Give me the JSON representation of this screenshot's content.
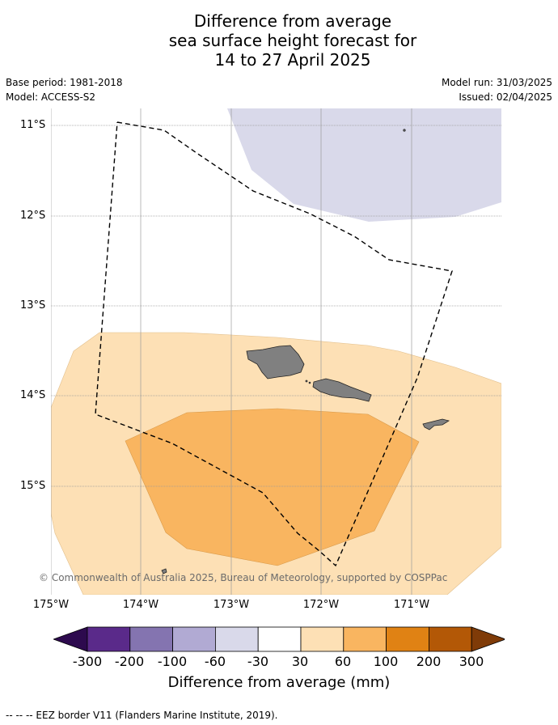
{
  "header": {
    "title_lines": [
      "Difference from average",
      "sea surface height forecast for",
      "14 to 27 April 2025"
    ],
    "base_period": "Base period: 1981-2018",
    "model": "Model: ACCESS-S2",
    "model_run": "Model run: 31/03/2025",
    "issued": "Issued: 02/04/2025"
  },
  "map": {
    "lat_labels": [
      "11°S",
      "12°S",
      "13°S",
      "14°S",
      "15°S"
    ],
    "lon_labels": [
      "175°W",
      "174°W",
      "173°W",
      "172°W",
      "171°W"
    ],
    "copyright": "© Commonwealth of Australia 2025, Bureau of Meteorology, supported by COSPPac",
    "colors": {
      "band_-60_-30": "#d9d9ea",
      "band_30_60": "#fde0b5",
      "band_60_100": "#f9b560",
      "land": "#808080",
      "grid": "#9a9a9a"
    }
  },
  "colorbar": {
    "ticks": [
      "-300",
      "-200",
      "-100",
      "-60",
      "-30",
      "30",
      "60",
      "100",
      "200",
      "300"
    ],
    "colors": [
      "#2d0a4e",
      "#5a2a8a",
      "#8474b0",
      "#b1aad3",
      "#d9d9ea",
      "#ffffff",
      "#fde0b5",
      "#f9b560",
      "#e08214",
      "#b35806",
      "#7f3b08"
    ],
    "label": "Difference from average (mm)"
  },
  "legend": {
    "eez": "--  --  -- EEZ border V11 (Flanders Marine Institute, 2019)."
  }
}
